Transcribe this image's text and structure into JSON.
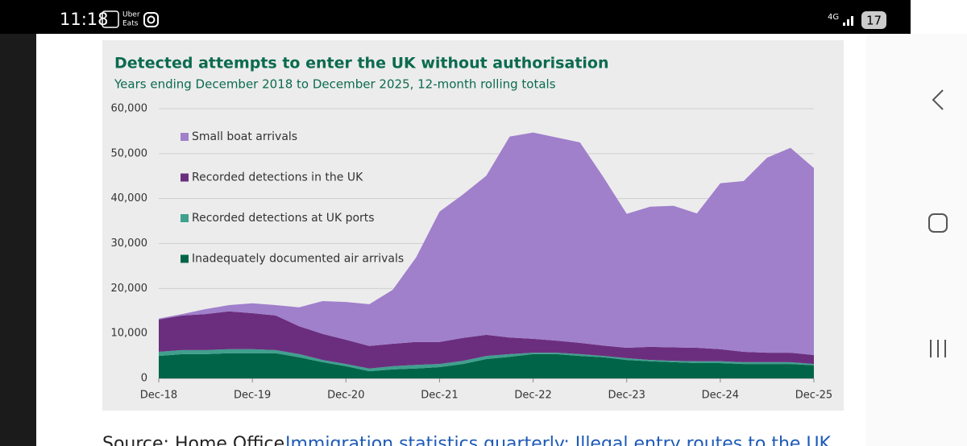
{
  "status_bar": {
    "time": "11:18",
    "app": [
      "Uber",
      "Eats"
    ],
    "network": "4G",
    "notifications": "17"
  },
  "chart_data": {
    "type": "stacked-area",
    "title": "Detected attempts to enter the UK without authorisation",
    "subtitle": "Years ending December 2018 to December 2025, 12-month rolling totals",
    "categories": [
      "Dec-18",
      null,
      null,
      null,
      "Dec-19",
      null,
      null,
      null,
      "Dec-20",
      null,
      null,
      null,
      "Dec-21",
      null,
      null,
      null,
      "Dec-22",
      null,
      null,
      null,
      "Dec-23",
      null,
      null,
      null,
      "Dec-24",
      null,
      null,
      null,
      "Dec-25"
    ],
    "series": [
      {
        "name": "Small boat arrivals",
        "color": "#a07fcb",
        "values": [
          200,
          300,
          1100,
          1400,
          2200,
          2300,
          4200,
          7300,
          8400,
          9300,
          12000,
          18800,
          29000,
          31900,
          35400,
          44700,
          45900,
          45200,
          44600,
          37500,
          29800,
          31200,
          31500,
          29900,
          36900,
          38000,
          43400,
          45600,
          41600
        ]
      },
      {
        "name": "Recorded detections in the UK",
        "color": "#6b2e7e",
        "values": [
          7200,
          7700,
          8000,
          8400,
          8000,
          7700,
          6200,
          5800,
          5400,
          5000,
          5000,
          5100,
          4900,
          5100,
          4700,
          3700,
          3100,
          2700,
          2500,
          2300,
          2300,
          2900,
          3000,
          3000,
          2700,
          2300,
          2100,
          2100,
          2000
        ]
      },
      {
        "name": "Recorded detections at UK ports",
        "color": "#3fa08e",
        "values": [
          900,
          900,
          900,
          900,
          900,
          700,
          700,
          500,
          500,
          600,
          700,
          800,
          700,
          700,
          700,
          600,
          300,
          300,
          400,
          300,
          400,
          300,
          300,
          400,
          400,
          400,
          400,
          400,
          300
        ]
      },
      {
        "name": "Inadequately documented air arrivals",
        "color": "#006548",
        "values": [
          5000,
          5400,
          5400,
          5600,
          5600,
          5600,
          4700,
          3600,
          2700,
          1600,
          2000,
          2200,
          2500,
          3200,
          4300,
          4800,
          5400,
          5400,
          5000,
          4700,
          4100,
          3800,
          3600,
          3400,
          3400,
          3200,
          3200,
          3200,
          2900
        ]
      }
    ],
    "ylim": [
      0,
      60000
    ],
    "yticks": [
      0,
      {
        "value": 10000,
        "label": "10,000"
      },
      {
        "value": 20000,
        "label": "20,000"
      },
      {
        "value": 30000,
        "label": "30,000"
      },
      {
        "value": 40000,
        "label": "40,000"
      },
      {
        "value": 50000,
        "label": "50,000"
      },
      {
        "value": 60000,
        "label": "60,000"
      }
    ],
    "grid": true,
    "legend": "upper-left"
  },
  "source": {
    "prefix": "Source: Home Office,",
    "link": "Immigration statistics quarterly: Illegal entry routes to the UK"
  }
}
